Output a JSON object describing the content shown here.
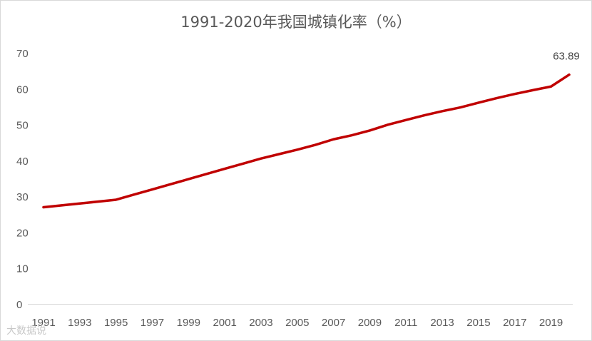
{
  "chart_data": {
    "type": "line",
    "title": "1991-2020年我国城镇化率（%）",
    "xlabel": "",
    "ylabel": "",
    "ylim": [
      0,
      70
    ],
    "yticks": [
      0,
      10,
      20,
      30,
      40,
      50,
      60,
      70
    ],
    "x": [
      1991,
      1992,
      1993,
      1994,
      1995,
      1996,
      1997,
      1998,
      1999,
      2000,
      2001,
      2002,
      2003,
      2004,
      2005,
      2006,
      2007,
      2008,
      2009,
      2010,
      2011,
      2012,
      2013,
      2014,
      2015,
      2016,
      2017,
      2018,
      2019,
      2020
    ],
    "xticks": [
      1991,
      1993,
      1995,
      1997,
      1999,
      2001,
      2003,
      2005,
      2007,
      2009,
      2011,
      2013,
      2015,
      2017,
      2019
    ],
    "series": [
      {
        "values": [
          26.94,
          27.46,
          27.99,
          28.51,
          29.04,
          30.48,
          31.91,
          33.35,
          34.78,
          36.22,
          37.66,
          39.09,
          40.53,
          41.76,
          42.99,
          44.34,
          45.89,
          46.99,
          48.34,
          49.95,
          51.27,
          52.57,
          53.73,
          54.77,
          56.1,
          57.35,
          58.52,
          59.58,
          60.6,
          63.89
        ],
        "color": "#c00000"
      }
    ],
    "annotations": [
      {
        "year": 2020,
        "text": "63.89"
      }
    ],
    "grid": false,
    "legend": "none"
  },
  "watermark_text": "大数据说"
}
